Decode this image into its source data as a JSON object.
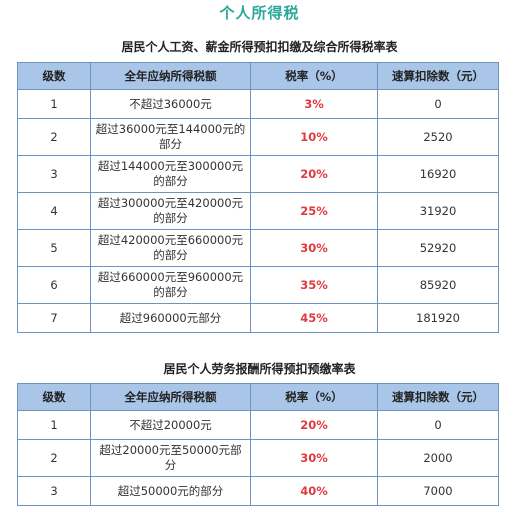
{
  "page": {
    "title": "个人所得税"
  },
  "table1": {
    "title": "居民个人工资、薪金所得预扣扣缴及综合所得税率表",
    "headers": [
      "级数",
      "全年应纳所得税额",
      "税率（%）",
      "速算扣除数（元）"
    ],
    "rows": [
      {
        "level": "1",
        "bracket": "不超过36000元",
        "rate": "3%",
        "deduction": "0"
      },
      {
        "level": "2",
        "bracket": "超过36000元至144000元的部分",
        "rate": "10%",
        "deduction": "2520"
      },
      {
        "level": "3",
        "bracket": "超过144000元至300000元的部分",
        "rate": "20%",
        "deduction": "16920"
      },
      {
        "level": "4",
        "bracket": "超过300000元至420000元的部分",
        "rate": "25%",
        "deduction": "31920"
      },
      {
        "level": "5",
        "bracket": "超过420000元至660000元的部分",
        "rate": "30%",
        "deduction": "52920"
      },
      {
        "level": "6",
        "bracket": "超过660000元至960000元的部分",
        "rate": "35%",
        "deduction": "85920"
      },
      {
        "level": "7",
        "bracket": "超过960000元部分",
        "rate": "45%",
        "deduction": "181920"
      }
    ]
  },
  "table2": {
    "title": "居民个人劳务报酬所得预扣预缴率表",
    "headers": [
      "级数",
      "全年应纳所得税额",
      "税率（%）",
      "速算扣除数（元）"
    ],
    "rows": [
      {
        "level": "1",
        "bracket": "不超过20000元",
        "rate": "20%",
        "deduction": "0"
      },
      {
        "level": "2",
        "bracket": "超过20000元至50000元部分",
        "rate": "30%",
        "deduction": "2000"
      },
      {
        "level": "3",
        "bracket": "超过50000元的部分",
        "rate": "40%",
        "deduction": "7000"
      }
    ]
  },
  "colors": {
    "title_accent": "#2aa89a",
    "header_bg": "#a9c6e8",
    "border": "#6e93bf",
    "rate_text": "#e03a3e"
  }
}
